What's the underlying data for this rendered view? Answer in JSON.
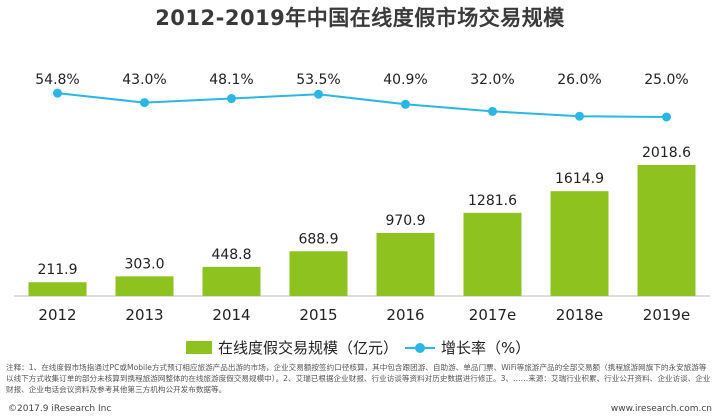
{
  "title": "2012-2019年中国在线度假市场交易规模",
  "chart_data": {
    "type": "bar",
    "categories": [
      "2012",
      "2013",
      "2014",
      "2015",
      "2016",
      "2017e",
      "2018e",
      "2019e"
    ],
    "series": [
      {
        "name": "在线度假交易规模（亿元）",
        "type": "bar",
        "values": [
          211.9,
          303.0,
          448.8,
          688.9,
          970.9,
          1281.6,
          1614.9,
          2018.6
        ],
        "labels": [
          "211.9",
          "303.0",
          "448.8",
          "688.9",
          "970.9",
          "1281.6",
          "1614.9",
          "2018.6"
        ],
        "color": "#8dc21f"
      },
      {
        "name": "增长率（%）",
        "type": "line",
        "values": [
          54.8,
          43.0,
          48.1,
          53.5,
          40.9,
          32.0,
          26.0,
          25.0
        ],
        "labels": [
          "54.8%",
          "43.0%",
          "48.1%",
          "53.5%",
          "40.9%",
          "32.0%",
          "26.0%",
          "25.0%"
        ],
        "color": "#2ab7e3"
      }
    ],
    "xlabel": "",
    "ylabel": ""
  },
  "legend": {
    "bar_label": "在线度假交易规模（亿元）",
    "line_label": "增长率（%）"
  },
  "note": "注释：1、在线度假市场指通过PC或Mobile方式预订相应旅游产品出游的市场，企业交易额按签约口径核算，其中包含跟团游、自助游、单品门票、WiFi等旅游产品的全部交易额（携程旅游网旗下的永安旅游等以线下方式收集订单的部分未核算到携程旅游网整体的在线旅游度假交易规模中）。2、艾瑞已根据企业财报、行业访谈等资料对历史数据进行修正。3、……来源：艾瑞行业积累、行业公开资料、企业访谈、企业财报、企业电话会议资料及参考其他第三方机构公开发布数据等。",
  "footer": {
    "copyright": "©2017.9 iResearch Inc",
    "site": "www.iresearch.com.cn"
  }
}
